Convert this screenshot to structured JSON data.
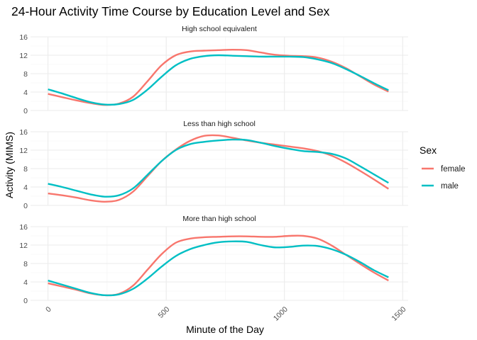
{
  "chart_data": {
    "type": "line",
    "title": "24-Hour Activity Time Course by Education Level and Sex",
    "xlabel": "Minute of the Day",
    "ylabel": "Activity (MIMS)",
    "xlim": [
      0,
      1440
    ],
    "ylim": [
      0,
      16
    ],
    "x_ticks": [
      0,
      500,
      1000,
      1500
    ],
    "y_ticks": [
      0,
      4,
      8,
      12,
      16
    ],
    "grid": true,
    "legend": {
      "title": "Sex",
      "position": "right",
      "entries": [
        {
          "name": "female",
          "color": "#F8766D"
        },
        {
          "name": "male",
          "color": "#00BFC4"
        }
      ]
    },
    "x": [
      0,
      60,
      120,
      180,
      240,
      300,
      360,
      420,
      480,
      540,
      600,
      660,
      720,
      780,
      840,
      900,
      960,
      1020,
      1080,
      1140,
      1200,
      1260,
      1320,
      1380,
      1440
    ],
    "panels": [
      {
        "label": "High school equivalent",
        "series": [
          {
            "name": "female",
            "values": [
              3.6,
              2.9,
              2.2,
              1.6,
              1.2,
              1.5,
              3.0,
              6.3,
              9.8,
              12.0,
              12.8,
              13.0,
              13.1,
              13.2,
              13.1,
              12.6,
              12.1,
              11.9,
              11.8,
              11.5,
              10.6,
              9.2,
              7.4,
              5.6,
              4.1
            ]
          },
          {
            "name": "male",
            "values": [
              4.6,
              3.7,
              2.7,
              1.8,
              1.3,
              1.4,
              2.3,
              4.5,
              7.3,
              9.8,
              11.2,
              11.8,
              12.0,
              11.9,
              11.8,
              11.7,
              11.7,
              11.7,
              11.6,
              11.1,
              10.3,
              9.0,
              7.5,
              5.9,
              4.4
            ]
          }
        ]
      },
      {
        "label": "Less than high school",
        "series": [
          {
            "name": "female",
            "values": [
              2.6,
              2.2,
              1.7,
              1.1,
              0.8,
              1.2,
              3.0,
              6.3,
              9.6,
              12.1,
              14.0,
              15.1,
              15.2,
              14.7,
              14.1,
              13.6,
              13.2,
              12.8,
              12.4,
              11.8,
              10.8,
              9.3,
              7.5,
              5.6,
              3.6
            ]
          },
          {
            "name": "male",
            "values": [
              4.7,
              4.0,
              3.2,
              2.4,
              1.9,
              2.2,
              3.7,
              6.6,
              9.6,
              12.0,
              13.3,
              13.8,
              14.1,
              14.3,
              14.2,
              13.6,
              12.9,
              12.3,
              11.8,
              11.6,
              11.2,
              10.2,
              8.5,
              6.7,
              4.9
            ]
          }
        ]
      },
      {
        "label": "More than high school",
        "series": [
          {
            "name": "female",
            "values": [
              3.7,
              3.0,
              2.3,
              1.5,
              1.1,
              1.4,
              3.2,
              6.6,
              10.0,
              12.5,
              13.4,
              13.7,
              13.8,
              13.9,
              13.9,
              13.8,
              13.8,
              14.0,
              14.0,
              13.4,
              11.9,
              9.9,
              7.9,
              6.0,
              4.3
            ]
          },
          {
            "name": "male",
            "values": [
              4.3,
              3.4,
              2.5,
              1.6,
              1.1,
              1.3,
              2.5,
              4.7,
              7.3,
              9.6,
              11.1,
              12.0,
              12.6,
              12.8,
              12.7,
              12.0,
              11.5,
              11.6,
              11.9,
              11.8,
              11.1,
              9.9,
              8.3,
              6.5,
              5.0
            ]
          }
        ]
      }
    ]
  }
}
